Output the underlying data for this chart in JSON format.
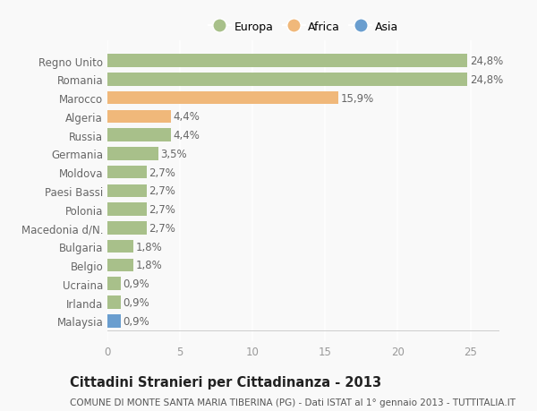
{
  "categories": [
    "Regno Unito",
    "Romania",
    "Marocco",
    "Algeria",
    "Russia",
    "Germania",
    "Moldova",
    "Paesi Bassi",
    "Polonia",
    "Macedonia d/N.",
    "Bulgaria",
    "Belgio",
    "Ucraina",
    "Irlanda",
    "Malaysia"
  ],
  "values": [
    24.8,
    24.8,
    15.9,
    4.4,
    4.4,
    3.5,
    2.7,
    2.7,
    2.7,
    2.7,
    1.8,
    1.8,
    0.9,
    0.9,
    0.9
  ],
  "labels": [
    "24,8%",
    "24,8%",
    "15,9%",
    "4,4%",
    "4,4%",
    "3,5%",
    "2,7%",
    "2,7%",
    "2,7%",
    "2,7%",
    "1,8%",
    "1,8%",
    "0,9%",
    "0,9%",
    "0,9%"
  ],
  "continents": [
    "Europa",
    "Europa",
    "Africa",
    "Africa",
    "Europa",
    "Europa",
    "Europa",
    "Europa",
    "Europa",
    "Europa",
    "Europa",
    "Europa",
    "Europa",
    "Europa",
    "Asia"
  ],
  "colors": {
    "Europa": "#a8c08a",
    "Africa": "#f0b87a",
    "Asia": "#6a9ecf"
  },
  "xlim": [
    0,
    27
  ],
  "xticks": [
    0,
    5,
    10,
    15,
    20,
    25
  ],
  "title": "Cittadini Stranieri per Cittadinanza - 2013",
  "subtitle": "COMUNE DI MONTE SANTA MARIA TIBERINA (PG) - Dati ISTAT al 1° gennaio 2013 - TUTTITALIA.IT",
  "background_color": "#f9f9f9",
  "grid_color": "#ffffff",
  "bar_height": 0.7,
  "label_fontsize": 8.5,
  "tick_fontsize": 8.5,
  "title_fontsize": 10.5,
  "subtitle_fontsize": 7.5
}
